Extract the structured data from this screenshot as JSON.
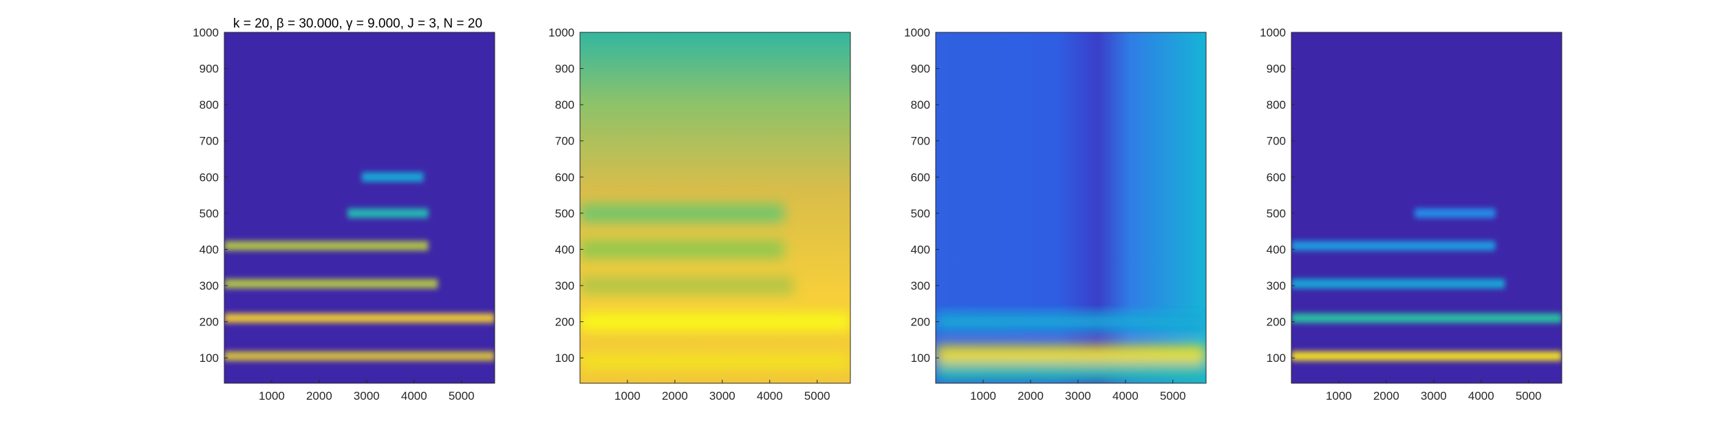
{
  "figure": {
    "title": "k = 20, β = 30.000, γ = 9.000, J = 3, N = 20"
  },
  "chart_data": [
    {
      "type": "heatmap",
      "panel": "spectrogram",
      "title": "k = 20, β = 30.000, γ = 9.000, J = 3, N = 20",
      "xlabel": "",
      "ylabel": "",
      "xlim": [
        0,
        5700
      ],
      "ylim": [
        30,
        1000
      ],
      "x_ticks": [
        1000,
        2000,
        3000,
        4000,
        5000
      ],
      "y_ticks": [
        100,
        200,
        300,
        400,
        500,
        600,
        700,
        800,
        900,
        1000
      ],
      "colormap": "parula",
      "background_color": "#3e26a8",
      "bands": [
        {
          "y": 105,
          "level": 0.85,
          "x0": 0,
          "x1": 5700
        },
        {
          "y": 210,
          "level": 0.9,
          "x0": 0,
          "x1": 5700
        },
        {
          "y": 305,
          "level": 0.8,
          "x0": 0,
          "x1": 4500
        },
        {
          "y": 410,
          "level": 0.8,
          "x0": 0,
          "x1": 4300
        },
        {
          "y": 500,
          "level": 0.55,
          "x0": 2600,
          "x1": 4300
        },
        {
          "y": 600,
          "level": 0.45,
          "x0": 2900,
          "x1": 4200
        }
      ]
    },
    {
      "type": "heatmap",
      "panel": "smoothed",
      "xlim": [
        0,
        5700
      ],
      "ylim": [
        30,
        1000
      ],
      "x_ticks": [
        1000,
        2000,
        3000,
        4000,
        5000
      ],
      "y_ticks": [
        100,
        200,
        300,
        400,
        500,
        600,
        700,
        800,
        900,
        1000
      ],
      "colormap": "parula",
      "background_color": "#a8c64e",
      "bands": [
        {
          "y": 90,
          "level": 0.95,
          "x0": 0,
          "x1": 5700
        },
        {
          "y": 200,
          "level": 1.0,
          "x0": 0,
          "x1": 5700
        },
        {
          "y": 300,
          "level": 0.8,
          "x0": 0,
          "x1": 4500
        },
        {
          "y": 400,
          "level": 0.75,
          "x0": 0,
          "x1": 4300
        },
        {
          "y": 500,
          "level": 0.7,
          "x0": 0,
          "x1": 4300
        }
      ]
    },
    {
      "type": "heatmap",
      "panel": "envelope",
      "xlim": [
        0,
        5700
      ],
      "ylim": [
        30,
        1000
      ],
      "x_ticks": [
        1000,
        2000,
        3000,
        4000,
        5000
      ],
      "y_ticks": [
        100,
        200,
        300,
        400,
        500,
        600,
        700,
        800,
        900,
        1000
      ],
      "colormap": "parula",
      "background_color": "#2b6fe0",
      "bands": [
        {
          "y": 110,
          "level": 0.95,
          "x0": 0,
          "x1": 5700
        },
        {
          "y": 200,
          "level": 0.45,
          "x0": 0,
          "x1": 5700
        },
        {
          "y": 60,
          "level": 0.55,
          "x0": 0,
          "x1": 5700
        }
      ]
    },
    {
      "type": "heatmap",
      "panel": "reconstruction",
      "xlim": [
        0,
        5700
      ],
      "ylim": [
        30,
        1000
      ],
      "x_ticks": [
        1000,
        2000,
        3000,
        4000,
        5000
      ],
      "y_ticks": [
        100,
        200,
        300,
        400,
        500,
        600,
        700,
        800,
        900,
        1000
      ],
      "colormap": "parula",
      "background_color": "#3e26a8",
      "bands": [
        {
          "y": 105,
          "level": 0.95,
          "x0": 0,
          "x1": 5700
        },
        {
          "y": 210,
          "level": 0.6,
          "x0": 0,
          "x1": 5700
        },
        {
          "y": 305,
          "level": 0.45,
          "x0": 0,
          "x1": 4500
        },
        {
          "y": 410,
          "level": 0.4,
          "x0": 0,
          "x1": 4300
        },
        {
          "y": 500,
          "level": 0.35,
          "x0": 2600,
          "x1": 4300
        }
      ]
    }
  ]
}
